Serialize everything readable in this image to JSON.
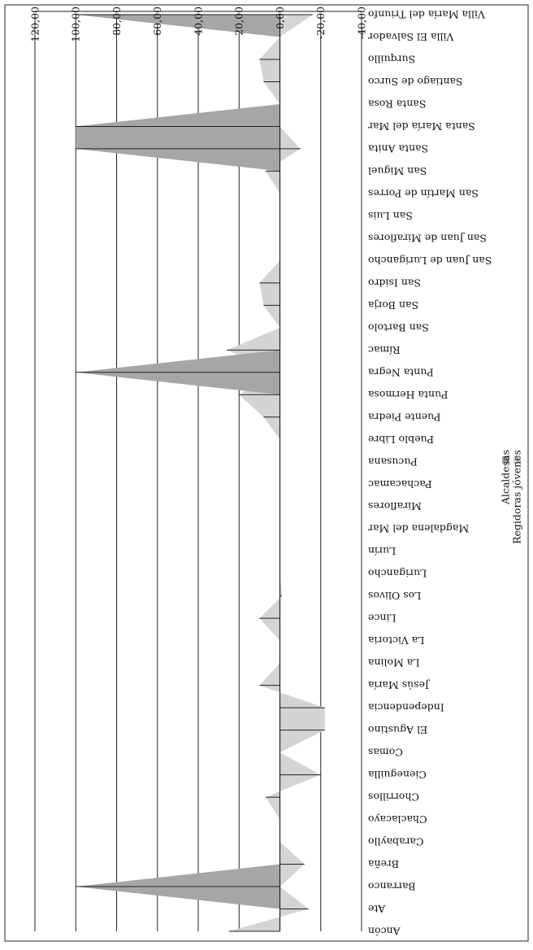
{
  "chart_data": {
    "type": "area",
    "orientation": "rotated",
    "categories": [
      "Ancón",
      "Ate",
      "Barranco",
      "Breña",
      "Carabayllo",
      "Chaclacayo",
      "Chorrillos",
      "Cieneguilla",
      "Comas",
      "El Agustino",
      "Independencia",
      "Jesús María",
      "La Molina",
      "La Victoria",
      "Lince",
      "Los Olivos",
      "Lurigancho",
      "Lurín",
      "Magdalena del Mar",
      "Miraflores",
      "Pachacamac",
      "Pucusana",
      "Pueblo Libre",
      "Puente Piedra",
      "Punta Hermosa",
      "Punta Negra",
      "Rímac",
      "San Bartolo",
      "San Borja",
      "San Isidro",
      "San Juan de Lurigancho",
      "San Juan de Miraflores",
      "San Luis",
      "San Martín de Porres",
      "San Miguel",
      "Santa Anita",
      "Santa María del Mar",
      "Santa Rosa",
      "Santiago de Surco",
      "Surquillo",
      "Villa El Salvador",
      "Villa María del Triunfo"
    ],
    "series": [
      {
        "name": "Regidoras jóvenes",
        "color": "#d4d4d4",
        "values": [
          25,
          -14,
          0,
          -12,
          0,
          0,
          7,
          -20,
          0,
          -22,
          -22,
          10,
          0,
          0,
          10,
          -1,
          0,
          0,
          0,
          0,
          0,
          0,
          0,
          8,
          20,
          0,
          26,
          0,
          8,
          10,
          0,
          0,
          0,
          0,
          7,
          -10,
          0,
          0,
          8,
          10,
          0,
          -16
        ]
      },
      {
        "name": "Alcaldesas",
        "color": "#a6a6a6",
        "values": [
          0,
          0,
          100,
          0,
          0,
          0,
          0,
          0,
          0,
          0,
          0,
          0,
          0,
          0,
          0,
          0,
          0,
          0,
          0,
          0,
          0,
          0,
          0,
          0,
          0,
          100,
          0,
          0,
          0,
          0,
          0,
          0,
          0,
          0,
          0,
          100,
          100,
          0,
          0,
          0,
          0,
          100
        ]
      }
    ],
    "ylim": [
      -40,
      120
    ],
    "yticks": [
      "-40,00",
      "-20,00",
      "0,00",
      "20,00",
      "40,00",
      "60,00",
      "80,00",
      "100,00",
      "120,00"
    ],
    "grid": true,
    "legend": "bottom-right"
  }
}
